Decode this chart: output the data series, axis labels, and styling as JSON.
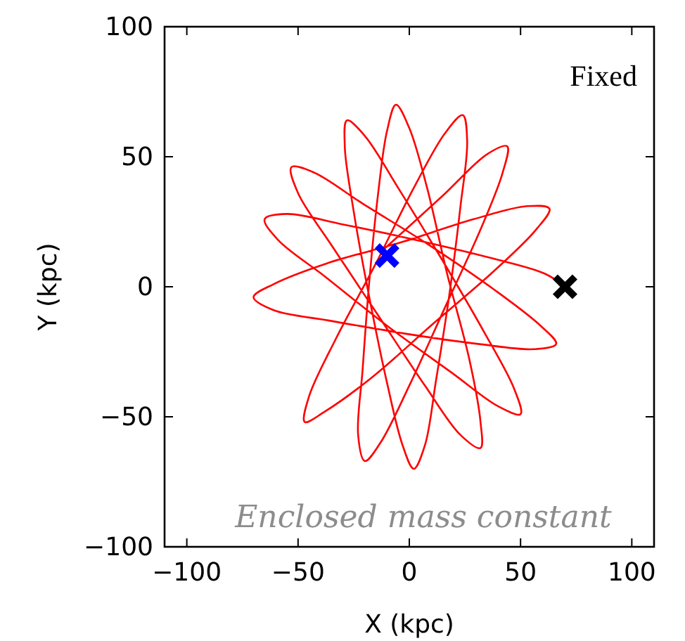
{
  "chart_data": {
    "type": "line",
    "xlabel": "X (kpc)",
    "ylabel": "Y (kpc)",
    "xlim": [
      -110,
      110
    ],
    "ylim": [
      -100,
      100
    ],
    "xticks": [
      -100,
      -50,
      0,
      50,
      100
    ],
    "yticks": [
      -100,
      -50,
      0,
      50,
      100
    ],
    "grid": false,
    "annotations": [
      "Fixed",
      "Enclosed mass constant"
    ],
    "series": [
      {
        "color": "#ff0000",
        "line_style": "solid",
        "x": [
          70,
          61,
          37,
          3,
          -30,
          -55,
          -65,
          -59,
          -38,
          -10,
          19,
          40,
          50,
          47,
          34,
          15,
          -5,
          -20,
          -28,
          -29,
          -25,
          -18,
          -10,
          -3,
          2,
          7,
          12,
          18,
          23,
          26,
          24,
          16,
          2,
          -15,
          -33,
          -45,
          -47,
          -38,
          -17,
          11,
          38,
          57,
          63,
          53,
          29,
          -4,
          -37,
          -61,
          -70,
          -61,
          -36,
          -2,
          31,
          56,
          66,
          59,
          38,
          9,
          -21,
          -43,
          -53,
          -50,
          -35,
          -14,
          7,
          23,
          32,
          32,
          27,
          17,
          8,
          0,
          -6,
          -10,
          -14,
          -18,
          -21,
          -23,
          -20,
          -13,
          0,
          16,
          32,
          42,
          44,
          35,
          15,
          -12
        ],
        "values": [
          0,
          5,
          11,
          18,
          24,
          28,
          26,
          18,
          4,
          -15,
          -33,
          -46,
          -49,
          -39,
          -18,
          10,
          38,
          58,
          64,
          54,
          29,
          -4,
          -37,
          -61,
          -70,
          -61,
          -36,
          -3,
          31,
          56,
          66,
          59,
          38,
          9,
          -20,
          -42,
          -52,
          -48,
          -35,
          -14,
          6,
          22,
          30,
          31,
          26,
          17,
          9,
          1,
          -4,
          -9,
          -13,
          -18,
          -22,
          -24,
          -22,
          -15,
          -1,
          16,
          32,
          44,
          46,
          36,
          16,
          -11,
          -38,
          -57,
          -62,
          -52,
          -28,
          5,
          38,
          61,
          70,
          60,
          36,
          2,
          -32,
          -57,
          -67,
          -60,
          -38,
          -8,
          22,
          44,
          54,
          51,
          35,
          14
        ]
      },
      {
        "type": "scatter",
        "color": "#000000",
        "marker": "cross",
        "x": [
          70
        ],
        "values": [
          0
        ]
      },
      {
        "type": "scatter",
        "color": "#0000ff",
        "marker": "cross",
        "x": [
          -10
        ],
        "values": [
          12
        ]
      }
    ]
  }
}
